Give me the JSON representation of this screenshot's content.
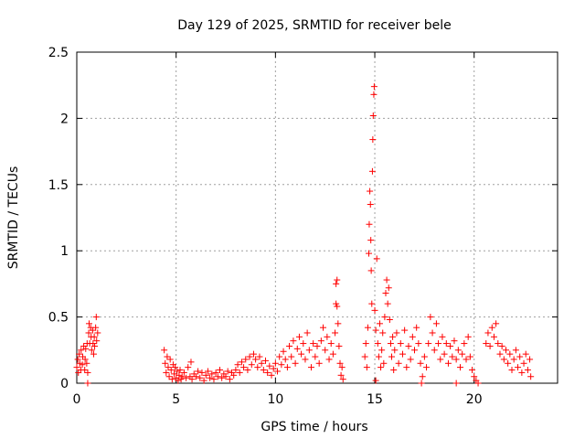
{
  "chart_data": {
    "type": "scatter",
    "title": "Day 129 of 2025, SRMTID for receiver bele",
    "xlabel": "GPS time / hours",
    "ylabel": "SRMTID / TECUs",
    "xlim": [
      0,
      24.2
    ],
    "ylim": [
      0,
      2.5
    ],
    "x_ticks": [
      0,
      5,
      10,
      15,
      20
    ],
    "y_ticks": [
      0,
      0.5,
      1,
      1.5,
      2,
      2.5
    ],
    "x_tick_labels": [
      "0",
      "5",
      "10",
      "15",
      "20"
    ],
    "y_tick_labels": [
      "0",
      "0.5",
      "1",
      "1.5",
      "2",
      "2.5"
    ],
    "grid": true,
    "marker": "+",
    "color": "#ff0000",
    "series": [
      {
        "name": "SRMTID",
        "points": [
          [
            0.0,
            0.12
          ],
          [
            0.05,
            0.18
          ],
          [
            0.08,
            0.08
          ],
          [
            0.12,
            0.22
          ],
          [
            0.15,
            0.15
          ],
          [
            0.2,
            0.1
          ],
          [
            0.22,
            0.25
          ],
          [
            0.28,
            0.14
          ],
          [
            0.3,
            0.2
          ],
          [
            0.35,
            0.28
          ],
          [
            0.4,
            0.1
          ],
          [
            0.42,
            0.18
          ],
          [
            0.45,
            0.26
          ],
          [
            0.5,
            0.15
          ],
          [
            0.52,
            0.3
          ],
          [
            0.55,
            0.08
          ],
          [
            0.6,
            0.38
          ],
          [
            0.62,
            0.45
          ],
          [
            0.65,
            0.3
          ],
          [
            0.7,
            0.42
          ],
          [
            0.72,
            0.35
          ],
          [
            0.75,
            0.25
          ],
          [
            0.8,
            0.4
          ],
          [
            0.82,
            0.3
          ],
          [
            0.85,
            0.22
          ],
          [
            0.88,
            0.35
          ],
          [
            0.9,
            0.28
          ],
          [
            0.95,
            0.42
          ],
          [
            0.98,
            0.5
          ],
          [
            1.0,
            0.32
          ],
          [
            1.05,
            0.38
          ],
          [
            0.55,
            0.0
          ],
          [
            4.4,
            0.25
          ],
          [
            4.45,
            0.15
          ],
          [
            4.5,
            0.08
          ],
          [
            4.55,
            0.2
          ],
          [
            4.6,
            0.12
          ],
          [
            4.65,
            0.05
          ],
          [
            4.7,
            0.18
          ],
          [
            4.75,
            0.1
          ],
          [
            4.8,
            0.03
          ],
          [
            4.85,
            0.14
          ],
          [
            4.9,
            0.07
          ],
          [
            4.95,
            0.12
          ],
          [
            5.0,
            0.04
          ],
          [
            5.05,
            0.09
          ],
          [
            5.1,
            0.02
          ],
          [
            5.15,
            0.06
          ],
          [
            5.2,
            0.1
          ],
          [
            5.25,
            0.03
          ],
          [
            5.3,
            0.05
          ],
          [
            5.4,
            0.08
          ],
          [
            5.5,
            0.04
          ],
          [
            5.6,
            0.12
          ],
          [
            5.7,
            0.05
          ],
          [
            5.75,
            0.16
          ],
          [
            5.8,
            0.03
          ],
          [
            5.9,
            0.07
          ],
          [
            6.0,
            0.05
          ],
          [
            6.1,
            0.09
          ],
          [
            6.2,
            0.04
          ],
          [
            6.3,
            0.08
          ],
          [
            6.4,
            0.02
          ],
          [
            6.5,
            0.06
          ],
          [
            6.6,
            0.09
          ],
          [
            6.7,
            0.04
          ],
          [
            6.8,
            0.07
          ],
          [
            6.9,
            0.03
          ],
          [
            7.0,
            0.08
          ],
          [
            7.1,
            0.05
          ],
          [
            7.2,
            0.1
          ],
          [
            7.3,
            0.04
          ],
          [
            7.4,
            0.07
          ],
          [
            7.5,
            0.05
          ],
          [
            7.6,
            0.09
          ],
          [
            7.7,
            0.03
          ],
          [
            7.8,
            0.08
          ],
          [
            7.9,
            0.06
          ],
          [
            8.0,
            0.1
          ],
          [
            8.1,
            0.14
          ],
          [
            8.2,
            0.08
          ],
          [
            8.3,
            0.16
          ],
          [
            8.4,
            0.12
          ],
          [
            8.5,
            0.18
          ],
          [
            8.6,
            0.1
          ],
          [
            8.7,
            0.2
          ],
          [
            8.8,
            0.14
          ],
          [
            8.9,
            0.22
          ],
          [
            9.0,
            0.18
          ],
          [
            9.1,
            0.12
          ],
          [
            9.2,
            0.2
          ],
          [
            9.3,
            0.15
          ],
          [
            9.4,
            0.1
          ],
          [
            9.5,
            0.17
          ],
          [
            9.6,
            0.08
          ],
          [
            9.7,
            0.13
          ],
          [
            9.8,
            0.06
          ],
          [
            9.9,
            0.11
          ],
          [
            10.0,
            0.15
          ],
          [
            10.1,
            0.09
          ],
          [
            10.2,
            0.2
          ],
          [
            10.3,
            0.14
          ],
          [
            10.4,
            0.24
          ],
          [
            10.5,
            0.18
          ],
          [
            10.6,
            0.12
          ],
          [
            10.7,
            0.28
          ],
          [
            10.8,
            0.2
          ],
          [
            10.9,
            0.32
          ],
          [
            11.0,
            0.15
          ],
          [
            11.1,
            0.26
          ],
          [
            11.2,
            0.35
          ],
          [
            11.3,
            0.22
          ],
          [
            11.4,
            0.3
          ],
          [
            11.5,
            0.18
          ],
          [
            11.6,
            0.38
          ],
          [
            11.7,
            0.25
          ],
          [
            11.8,
            0.12
          ],
          [
            11.9,
            0.3
          ],
          [
            12.0,
            0.2
          ],
          [
            12.1,
            0.28
          ],
          [
            12.2,
            0.15
          ],
          [
            12.3,
            0.32
          ],
          [
            12.4,
            0.42
          ],
          [
            12.5,
            0.25
          ],
          [
            12.6,
            0.35
          ],
          [
            12.7,
            0.18
          ],
          [
            12.8,
            0.3
          ],
          [
            12.9,
            0.22
          ],
          [
            13.0,
            0.38
          ],
          [
            13.05,
            0.6
          ],
          [
            13.1,
            0.78
          ],
          [
            13.15,
            0.45
          ],
          [
            13.2,
            0.28
          ],
          [
            13.25,
            0.15
          ],
          [
            13.3,
            0.06
          ],
          [
            13.35,
            0.12
          ],
          [
            13.4,
            0.03
          ],
          [
            13.1,
            0.58
          ],
          [
            13.05,
            0.75
          ],
          [
            14.5,
            0.2
          ],
          [
            14.55,
            0.3
          ],
          [
            14.6,
            0.12
          ],
          [
            14.65,
            0.42
          ],
          [
            14.7,
            0.98
          ],
          [
            14.72,
            1.2
          ],
          [
            14.75,
            1.45
          ],
          [
            14.78,
            1.35
          ],
          [
            14.8,
            1.08
          ],
          [
            14.82,
            0.85
          ],
          [
            14.85,
            0.6
          ],
          [
            14.88,
            1.6
          ],
          [
            14.9,
            1.84
          ],
          [
            14.92,
            2.02
          ],
          [
            14.95,
            2.18
          ],
          [
            14.97,
            2.24
          ],
          [
            15.0,
            0.55
          ],
          [
            15.05,
            0.4
          ],
          [
            15.1,
            0.94
          ],
          [
            15.15,
            0.3
          ],
          [
            15.2,
            0.2
          ],
          [
            15.25,
            0.45
          ],
          [
            15.3,
            0.12
          ],
          [
            15.35,
            0.25
          ],
          [
            15.4,
            0.38
          ],
          [
            15.45,
            0.15
          ],
          [
            15.5,
            0.5
          ],
          [
            15.55,
            0.68
          ],
          [
            15.6,
            0.78
          ],
          [
            15.65,
            0.6
          ],
          [
            15.7,
            0.72
          ],
          [
            15.75,
            0.48
          ],
          [
            15.8,
            0.3
          ],
          [
            15.85,
            0.2
          ],
          [
            15.9,
            0.35
          ],
          [
            15.95,
            0.1
          ],
          [
            16.0,
            0.25
          ],
          [
            16.1,
            0.38
          ],
          [
            16.2,
            0.15
          ],
          [
            16.3,
            0.3
          ],
          [
            16.4,
            0.22
          ],
          [
            16.5,
            0.4
          ],
          [
            16.6,
            0.12
          ],
          [
            16.7,
            0.28
          ],
          [
            16.8,
            0.18
          ],
          [
            16.9,
            0.35
          ],
          [
            17.0,
            0.25
          ],
          [
            17.1,
            0.42
          ],
          [
            17.2,
            0.3
          ],
          [
            17.3,
            0.15
          ],
          [
            17.4,
            0.05
          ],
          [
            17.5,
            0.2
          ],
          [
            17.6,
            0.12
          ],
          [
            17.7,
            0.3
          ],
          [
            17.8,
            0.5
          ],
          [
            17.9,
            0.38
          ],
          [
            18.0,
            0.25
          ],
          [
            18.1,
            0.45
          ],
          [
            18.2,
            0.3
          ],
          [
            18.3,
            0.18
          ],
          [
            18.4,
            0.35
          ],
          [
            18.5,
            0.22
          ],
          [
            18.6,
            0.3
          ],
          [
            18.7,
            0.15
          ],
          [
            18.8,
            0.28
          ],
          [
            18.9,
            0.2
          ],
          [
            19.0,
            0.32
          ],
          [
            19.1,
            0.18
          ],
          [
            19.2,
            0.25
          ],
          [
            19.3,
            0.12
          ],
          [
            19.4,
            0.22
          ],
          [
            19.5,
            0.3
          ],
          [
            19.6,
            0.18
          ],
          [
            19.7,
            0.35
          ],
          [
            19.8,
            0.2
          ],
          [
            19.9,
            0.1
          ],
          [
            20.0,
            0.05
          ],
          [
            20.1,
            0.02
          ],
          [
            20.2,
            0.0
          ],
          [
            15.05,
            0.02
          ],
          [
            17.35,
            0.0
          ],
          [
            19.1,
            0.0
          ],
          [
            20.6,
            0.3
          ],
          [
            20.7,
            0.38
          ],
          [
            20.8,
            0.28
          ],
          [
            20.9,
            0.42
          ],
          [
            21.0,
            0.35
          ],
          [
            21.1,
            0.45
          ],
          [
            21.2,
            0.3
          ],
          [
            21.3,
            0.22
          ],
          [
            21.4,
            0.28
          ],
          [
            21.5,
            0.18
          ],
          [
            21.6,
            0.25
          ],
          [
            21.7,
            0.15
          ],
          [
            21.8,
            0.22
          ],
          [
            21.9,
            0.1
          ],
          [
            22.0,
            0.18
          ],
          [
            22.1,
            0.25
          ],
          [
            22.2,
            0.12
          ],
          [
            22.3,
            0.2
          ],
          [
            22.4,
            0.08
          ],
          [
            22.5,
            0.15
          ],
          [
            22.6,
            0.22
          ],
          [
            22.7,
            0.1
          ],
          [
            22.8,
            0.18
          ],
          [
            22.85,
            0.05
          ]
        ]
      }
    ]
  }
}
